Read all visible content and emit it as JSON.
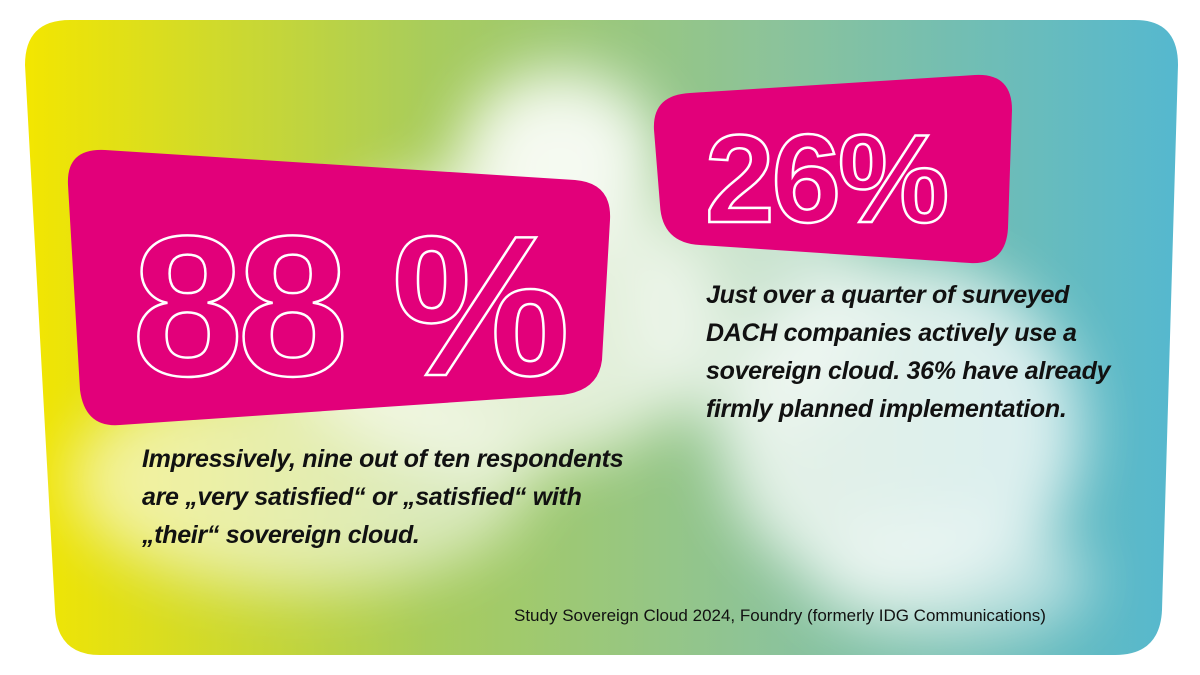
{
  "colors": {
    "pink": "#E2007A",
    "gradient": [
      "#F3E600",
      "#A8CC5C",
      "#8CC39A",
      "#55B8CF"
    ]
  },
  "stat1": {
    "value": "88 %",
    "text": [
      "Impressively, nine out of ten respondents",
      "are „very satisfied“ or „satisfied“ with",
      "„their“ sovereign cloud."
    ]
  },
  "stat2": {
    "value": "26%",
    "text": [
      "Just over a quarter of surveyed",
      "DACH companies actively use a",
      "sovereign cloud. 36% have already",
      "firmly planned implementation."
    ]
  },
  "source": "Study Sovereign Cloud 2024, Foundry (formerly IDG Communications)"
}
